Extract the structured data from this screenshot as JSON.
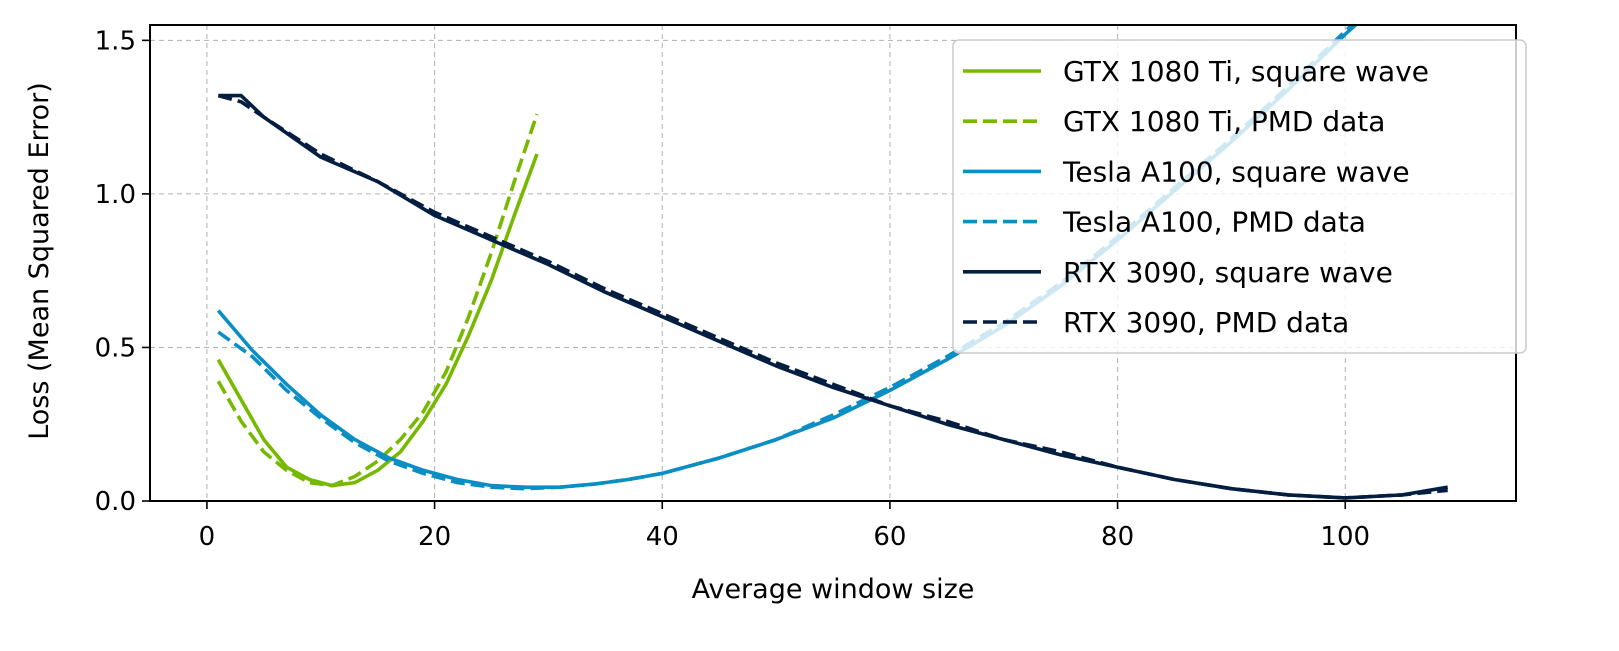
{
  "chart_data": {
    "type": "line",
    "xlabel": "Average window size",
    "ylabel": "Loss (Mean Squared Error)",
    "xlim": [
      -5,
      115
    ],
    "ylim": [
      0.0,
      1.55
    ],
    "xticks": [
      0,
      20,
      40,
      60,
      80,
      100
    ],
    "yticks": [
      0.0,
      0.5,
      1.0,
      1.5
    ],
    "xtick_labels": [
      "0",
      "20",
      "40",
      "60",
      "80",
      "100"
    ],
    "ytick_labels": [
      "0.0",
      "0.5",
      "1.0",
      "1.5"
    ],
    "grid": true,
    "legend_position": "upper-right",
    "series": [
      {
        "name": "GTX 1080 Ti, square wave",
        "color": "#76b900",
        "dash": "solid",
        "x": [
          1,
          3,
          5,
          7,
          9,
          11,
          13,
          15,
          17,
          19,
          21,
          23,
          25,
          27,
          29
        ],
        "y": [
          0.46,
          0.33,
          0.2,
          0.11,
          0.07,
          0.05,
          0.06,
          0.1,
          0.16,
          0.26,
          0.38,
          0.54,
          0.72,
          0.93,
          1.13
        ]
      },
      {
        "name": "GTX 1080 Ti, PMD data",
        "color": "#76b900",
        "dash": "dashed",
        "x": [
          1,
          3,
          5,
          7,
          9,
          11,
          13,
          15,
          17,
          19,
          21,
          23,
          25,
          27,
          29
        ],
        "y": [
          0.39,
          0.26,
          0.16,
          0.1,
          0.06,
          0.05,
          0.08,
          0.13,
          0.2,
          0.29,
          0.42,
          0.6,
          0.81,
          1.04,
          1.26
        ]
      },
      {
        "name": "Tesla A100, square wave",
        "color": "#0a8ec4",
        "dash": "solid",
        "x": [
          1,
          4,
          7,
          10,
          13,
          16,
          19,
          22,
          25,
          28,
          31,
          34,
          37,
          40,
          45,
          50,
          55,
          60,
          65,
          70,
          75,
          80,
          85,
          90,
          95,
          100,
          103
        ],
        "y": [
          0.62,
          0.49,
          0.38,
          0.28,
          0.2,
          0.14,
          0.1,
          0.07,
          0.05,
          0.045,
          0.045,
          0.055,
          0.07,
          0.09,
          0.14,
          0.2,
          0.27,
          0.36,
          0.46,
          0.57,
          0.7,
          0.85,
          1.01,
          1.17,
          1.34,
          1.52,
          1.62
        ]
      },
      {
        "name": "Tesla A100, PMD data",
        "color": "#0a8ec4",
        "dash": "dashed",
        "x": [
          1,
          4,
          7,
          10,
          13,
          16,
          19,
          22,
          25,
          28,
          31,
          34,
          37,
          40,
          45,
          50,
          55,
          60,
          65,
          70,
          75,
          80,
          85,
          90,
          95,
          100,
          103
        ],
        "y": [
          0.55,
          0.47,
          0.36,
          0.27,
          0.19,
          0.13,
          0.09,
          0.06,
          0.045,
          0.04,
          0.045,
          0.055,
          0.07,
          0.09,
          0.14,
          0.2,
          0.28,
          0.37,
          0.47,
          0.58,
          0.71,
          0.86,
          1.02,
          1.18,
          1.35,
          1.53,
          1.63
        ]
      },
      {
        "name": "RTX 3090, square wave",
        "color": "#041e42",
        "dash": "solid",
        "x": [
          1,
          3,
          5,
          10,
          15,
          20,
          25,
          30,
          35,
          40,
          45,
          50,
          55,
          60,
          65,
          70,
          75,
          80,
          85,
          90,
          95,
          100,
          105,
          109
        ],
        "y": [
          1.32,
          1.32,
          1.25,
          1.12,
          1.04,
          0.93,
          0.85,
          0.77,
          0.68,
          0.6,
          0.52,
          0.44,
          0.37,
          0.31,
          0.25,
          0.2,
          0.15,
          0.11,
          0.07,
          0.04,
          0.02,
          0.01,
          0.02,
          0.045
        ]
      },
      {
        "name": "RTX 3090, PMD data",
        "color": "#041e42",
        "dash": "dashed",
        "x": [
          1,
          3,
          5,
          10,
          15,
          20,
          25,
          30,
          35,
          40,
          45,
          50,
          55,
          60,
          65,
          70,
          75,
          80,
          85,
          90,
          95,
          100,
          105,
          109
        ],
        "y": [
          1.32,
          1.3,
          1.25,
          1.13,
          1.04,
          0.94,
          0.86,
          0.78,
          0.69,
          0.61,
          0.53,
          0.45,
          0.38,
          0.31,
          0.26,
          0.2,
          0.16,
          0.11,
          0.07,
          0.04,
          0.02,
          0.01,
          0.02,
          0.035
        ]
      }
    ]
  }
}
